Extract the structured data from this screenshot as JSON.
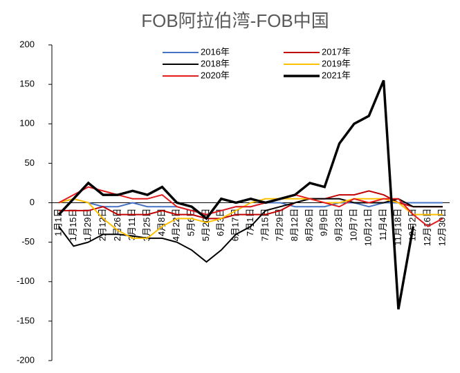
{
  "chart_data": {
    "type": "line",
    "title": "FOB阿拉伯湾-FOB中国",
    "categories": [
      "1月1日",
      "1月15日",
      "1月29日",
      "2月12日",
      "2月26日",
      "3月11日",
      "3月25日",
      "4月8日",
      "4月22日",
      "5月6日",
      "5月20日",
      "6月3日",
      "6月17日",
      "7月1日",
      "7月15日",
      "7月29日",
      "8月12日",
      "8月26日",
      "9月9日",
      "9月23日",
      "10月7日",
      "10月21日",
      "11月4日",
      "11月18日",
      "12月2日",
      "12月16日",
      "12月30日"
    ],
    "series": [
      {
        "name": "2016年",
        "color": "#4472c4",
        "width": 2,
        "values": [
          0,
          5,
          0,
          -5,
          -5,
          0,
          -5,
          -5,
          -5,
          -10,
          -15,
          -10,
          -5,
          -5,
          0,
          0,
          -5,
          -5,
          -5,
          0,
          0,
          -5,
          0,
          0,
          0,
          0,
          0
        ]
      },
      {
        "name": "2017年",
        "color": "#c00000",
        "width": 2,
        "values": [
          -10,
          -10,
          -10,
          -5,
          -15,
          -15,
          -15,
          -10,
          -15,
          -15,
          -20,
          -20,
          -15,
          -15,
          -15,
          -10,
          0,
          5,
          5,
          10,
          10,
          15,
          10,
          0,
          -5,
          -5,
          -5
        ]
      },
      {
        "name": "2018年",
        "color": "#000000",
        "width": 2,
        "values": [
          -30,
          -55,
          -50,
          -40,
          -40,
          -42,
          -45,
          -45,
          -50,
          -60,
          -75,
          -60,
          -40,
          -30,
          -10,
          -5,
          0,
          5,
          5,
          5,
          0,
          0,
          0,
          5,
          -5,
          -5,
          -5
        ]
      },
      {
        "name": "2019年",
        "color": "#ffc000",
        "width": 2,
        "values": [
          0,
          5,
          0,
          -20,
          -35,
          -45,
          -45,
          -30,
          -20,
          -20,
          -25,
          -20,
          -10,
          0,
          5,
          5,
          5,
          5,
          0,
          0,
          5,
          5,
          5,
          0,
          -15,
          -15,
          -15
        ]
      },
      {
        "name": "2020年",
        "color": "#e31a1c",
        "width": 2,
        "values": [
          0,
          10,
          20,
          15,
          10,
          5,
          5,
          10,
          -5,
          -10,
          -15,
          -10,
          -5,
          -5,
          0,
          5,
          10,
          5,
          0,
          -5,
          5,
          0,
          5,
          5,
          -15,
          -30,
          -20
        ]
      },
      {
        "name": "2021年",
        "color": "#000000",
        "width": 3.5,
        "values": [
          -15,
          5,
          25,
          10,
          10,
          15,
          10,
          20,
          0,
          -5,
          -20,
          5,
          0,
          5,
          0,
          5,
          10,
          25,
          20,
          75,
          100,
          110,
          155,
          -135,
          -30,
          null,
          null
        ]
      }
    ],
    "ylim": [
      -200,
      200
    ],
    "yticks": [
      -200,
      -150,
      -100,
      -50,
      0,
      50,
      100,
      150,
      200
    ]
  }
}
